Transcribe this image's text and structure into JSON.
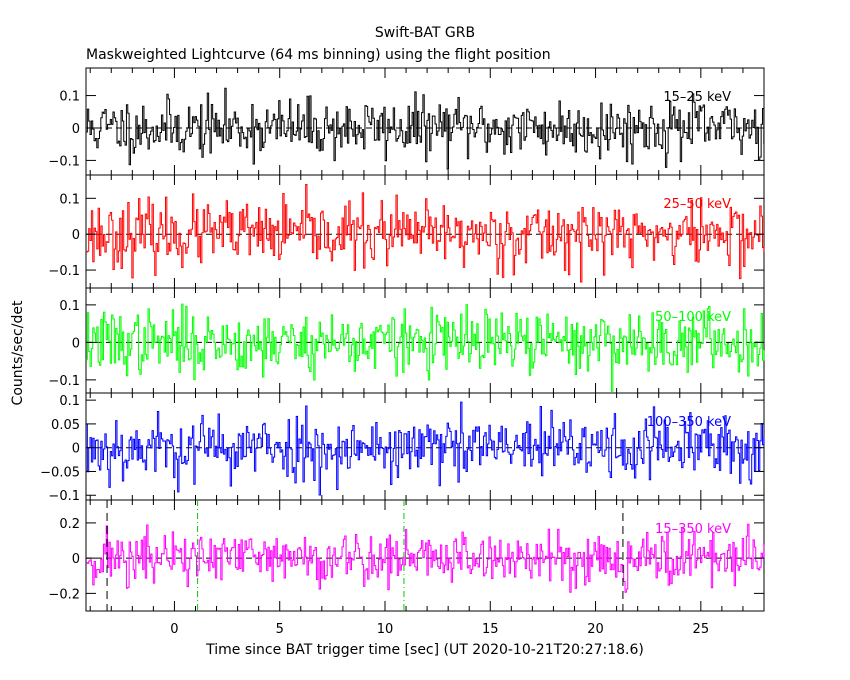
{
  "chart_data": {
    "type": "line",
    "title": "Swift-BAT GRB",
    "subtitle": "Maskweighted Lightcurve (64 ms binning) using the flight position",
    "xlabel": "Time since BAT trigger time [sec] (UT 2020-10-21T20:27:18.6)",
    "ylabel": "Counts/sec/det",
    "xlim": [
      -4.2,
      28.0
    ],
    "x_ticks": [
      0,
      5,
      10,
      15,
      20,
      25
    ],
    "x_tick_labels": [
      "0",
      "5",
      "10",
      "15",
      "20",
      "25"
    ],
    "bin_size_sec": 0.064,
    "markers": {
      "dashed_black_x": [
        -3.2,
        21.3
      ],
      "dashdot_green_x": [
        1.1,
        10.9
      ]
    },
    "panels": [
      {
        "band": "15–25 keV",
        "color": "#000000",
        "ylim": [
          -0.145,
          0.185
        ],
        "ticks": [
          -0.1,
          0,
          0.1
        ],
        "tick_labels": [
          "−0.1",
          "0",
          "0.1"
        ],
        "noise_sd": 0.045,
        "seed": 11
      },
      {
        "band": "25–50 keV",
        "color": "#ff0000",
        "ylim": [
          -0.15,
          0.165
        ],
        "ticks": [
          -0.1,
          0,
          0.1
        ],
        "tick_labels": [
          "−0.1",
          "0",
          "0.1"
        ],
        "noise_sd": 0.045,
        "seed": 23
      },
      {
        "band": "50–100 keV",
        "color": "#00ff00",
        "ylim": [
          -0.135,
          0.145
        ],
        "ticks": [
          -0.1,
          0,
          0.1
        ],
        "tick_labels": [
          "−0.1",
          "0",
          "0.1"
        ],
        "noise_sd": 0.042,
        "seed": 37
      },
      {
        "band": "100–350 keV",
        "color": "#0000ff",
        "ylim": [
          -0.11,
          0.115
        ],
        "ticks": [
          -0.1,
          -0.05,
          0,
          0.05,
          0.1
        ],
        "tick_labels": [
          "−0.1",
          "−0.05",
          "0",
          "0.05",
          "0.1"
        ],
        "noise_sd": 0.035,
        "seed": 53
      },
      {
        "band": "15–350 keV",
        "color": "#ff00ff",
        "ylim": [
          -0.3,
          0.33
        ],
        "ticks": [
          -0.2,
          0,
          0.2
        ],
        "tick_labels": [
          "−0.2",
          "0",
          "0.2"
        ],
        "noise_sd": 0.08,
        "seed": 71
      }
    ]
  }
}
